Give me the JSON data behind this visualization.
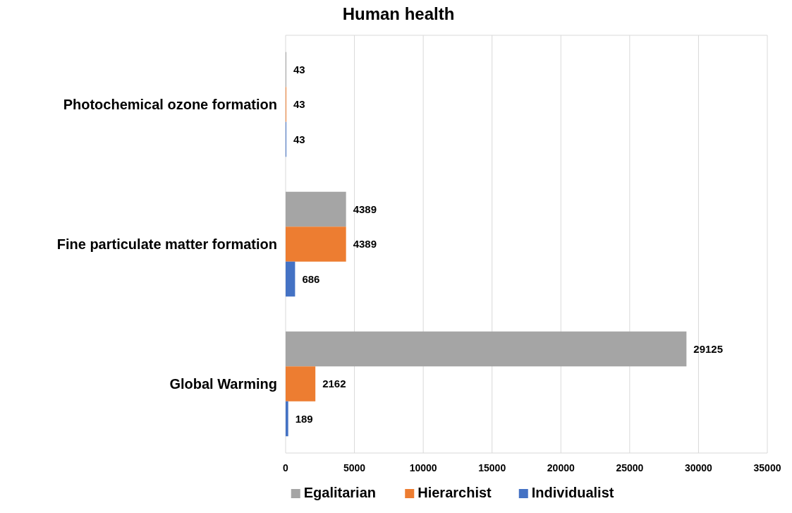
{
  "chart_data": {
    "type": "bar",
    "orientation": "horizontal",
    "title": "Human health",
    "categories": [
      "Photochemical ozone formation",
      "Fine particulate matter formation",
      "Global Warming"
    ],
    "series": [
      {
        "name": "Egalitarian",
        "color": "#a5a5a5",
        "values": [
          43,
          4389,
          29125
        ]
      },
      {
        "name": "Hierarchist",
        "color": "#ed7d31",
        "values": [
          43,
          4389,
          2162
        ]
      },
      {
        "name": "Individualist",
        "color": "#4472c4",
        "values": [
          43,
          686,
          189
        ]
      }
    ],
    "xlim": [
      0,
      35000
    ],
    "xticks": [
      0,
      5000,
      10000,
      15000,
      20000,
      25000,
      30000,
      35000
    ],
    "grid": "x",
    "legend": "bottom",
    "data_labels": true
  }
}
